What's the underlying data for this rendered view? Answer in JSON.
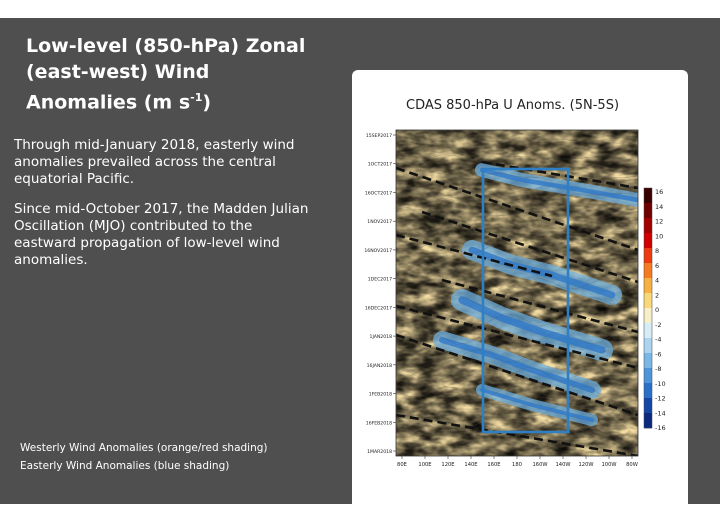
{
  "slide": {
    "title_prefix": "Low-level (850-h",
    "title_pa": "Pa",
    "title_rest": ") Zonal (east-west) Wind Anomalies (m s",
    "title_sup": "-1",
    "title_end": ")",
    "paragraph1": "Through mid-January 2018, easterly wind anomalies prevailed across the central equatorial Pacific.",
    "paragraph2": "Since mid-October 2017, the Madden Julian Oscillation (MJO) contributed to the eastward propagation of low-level wind anomalies.",
    "legend_westerly": "Westerly Wind Anomalies (orange/red shading)",
    "legend_easterly": "Easterly Wind Anomalies (blue shading)"
  },
  "figure": {
    "title": "CDAS 850-hPa U Anoms. (5N-5S)",
    "y_ticks": [
      "15SEP2017",
      "1OCT2017",
      "16OCT2017",
      "1NOV2017",
      "16NOV2017",
      "1DEC2017",
      "16DEC2017",
      "1JAN2018",
      "16JAN2018",
      "1FEB2018",
      "16FEB2018",
      "1MAR2018"
    ],
    "x_ticks": [
      "80E",
      "100E",
      "120E",
      "140E",
      "160E",
      "180",
      "160W",
      "140W",
      "120W",
      "100W",
      "80W"
    ],
    "colorbar": {
      "labels": [
        "16",
        "14",
        "12",
        "10",
        "8",
        "6",
        "4",
        "2",
        "0",
        "-2",
        "-4",
        "-6",
        "-8",
        "-10",
        "-12",
        "-14",
        "-16"
      ],
      "colors": [
        "#3a0000",
        "#6e0000",
        "#a30000",
        "#d00000",
        "#ee3a10",
        "#f57a20",
        "#f8b040",
        "#fad878",
        "#f6efc8",
        "#d6ecf6",
        "#aad4f0",
        "#7ab6e6",
        "#4e94da",
        "#2a70c8",
        "#1446a6",
        "#0a2a80"
      ]
    },
    "box_color": "#2e7fc4",
    "mjo_line_color": "#111111"
  }
}
